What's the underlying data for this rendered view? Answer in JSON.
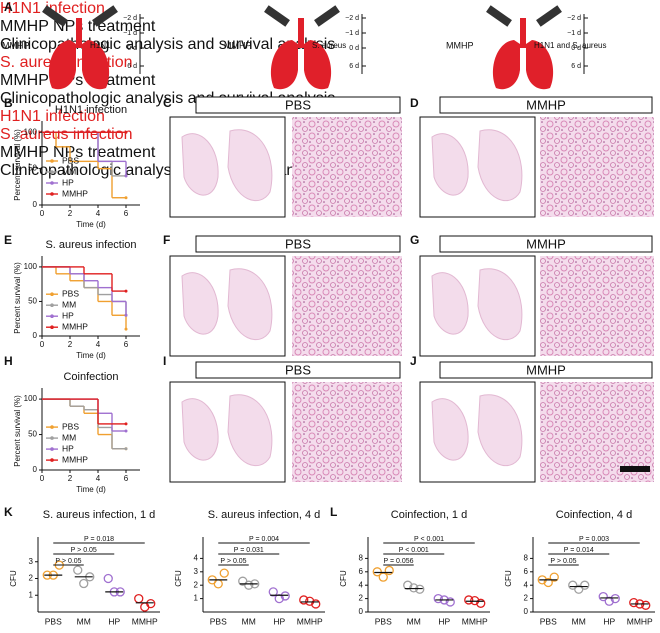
{
  "panel_labels": [
    "A",
    "B",
    "C",
    "D",
    "E",
    "F",
    "G",
    "H",
    "I",
    "J",
    "K",
    "L"
  ],
  "schematics": [
    {
      "left_label": "MMHP",
      "pathogen": "H1N1",
      "days": [
        "−2 d",
        "−1 d",
        "0 d",
        "6 d"
      ],
      "events": [
        "H1N1 infection",
        null,
        "MMHP NPs treatment",
        "Clinicopathologic analysis and survival analysis"
      ]
    },
    {
      "left_label": "MMHP",
      "pathogen": "S. aureus",
      "days": [
        "−2 d",
        "−1 d",
        "0 d",
        "6 d"
      ],
      "events": [
        null,
        "S. aureus infection",
        "MMHP NPs treatment",
        "Clinicopathologic analysis and survival analysis"
      ]
    },
    {
      "left_label": "MMHP",
      "pathogen": "H1N1 and S. aureus",
      "days": [
        "−2 d",
        "−1 d",
        "0 d",
        "6 d"
      ],
      "events": [
        "H1N1 infection",
        "S. aureus infection",
        "MMHP NPs treatment",
        "Clinicopathologic analysis and survival analysis"
      ]
    }
  ],
  "histology": [
    {
      "label": "PBS"
    },
    {
      "label": "MMHP"
    },
    {
      "label": "PBS"
    },
    {
      "label": "MMHP"
    },
    {
      "label": "PBS"
    },
    {
      "label": "MMHP"
    }
  ],
  "chart_data": [
    {
      "type": "step",
      "title": "H1N1 infection",
      "x_label": "Time (d)",
      "y_label": "Percent survival (%)",
      "x": [
        0,
        1,
        2,
        3,
        4,
        5,
        6
      ],
      "xlim": [
        0,
        7
      ],
      "xticks": [
        0,
        2,
        4,
        6
      ],
      "ylim": [
        0,
        110
      ],
      "yticks": [
        0,
        50,
        100
      ],
      "series": [
        {
          "name": "PBS",
          "color": "#f0a030",
          "values": [
            100,
            80,
            60,
            60,
            50,
            10,
            10
          ]
        },
        {
          "name": "MM",
          "color": "#a0a0a0",
          "values": [
            100,
            100,
            100,
            100,
            60,
            40,
            40
          ]
        },
        {
          "name": "HP",
          "color": "#a070d0",
          "values": [
            100,
            100,
            100,
            100,
            60,
            60,
            40
          ]
        },
        {
          "name": "MMHP",
          "color": "#e02020",
          "values": [
            100,
            100,
            100,
            100,
            100,
            100,
            100
          ]
        }
      ]
    },
    {
      "type": "step",
      "title": "S. aureus infection",
      "x_label": "Time (d)",
      "y_label": "Percent survival (%)",
      "x": [
        0,
        1,
        2,
        3,
        4,
        5,
        6
      ],
      "xlim": [
        0,
        7
      ],
      "xticks": [
        0,
        2,
        4,
        6
      ],
      "ylim": [
        0,
        110
      ],
      "yticks": [
        0,
        50,
        100
      ],
      "series": [
        {
          "name": "PBS",
          "color": "#f0a030",
          "values": [
            100,
            90,
            80,
            70,
            50,
            30,
            10
          ]
        },
        {
          "name": "MM",
          "color": "#a0a0a0",
          "values": [
            100,
            100,
            90,
            70,
            60,
            50,
            30
          ]
        },
        {
          "name": "HP",
          "color": "#a070d0",
          "values": [
            100,
            100,
            90,
            80,
            70,
            50,
            30
          ]
        },
        {
          "name": "MMHP",
          "color": "#e02020",
          "values": [
            100,
            100,
            100,
            90,
            90,
            65,
            65
          ]
        }
      ]
    },
    {
      "type": "step",
      "title": "Coinfection",
      "x_label": "Time (d)",
      "y_label": "Percent survival (%)",
      "x": [
        0,
        1,
        2,
        3,
        4,
        5,
        6
      ],
      "xlim": [
        0,
        7
      ],
      "xticks": [
        0,
        2,
        4,
        6
      ],
      "ylim": [
        0,
        110
      ],
      "yticks": [
        0,
        50,
        100
      ],
      "series": [
        {
          "name": "PBS",
          "color": "#f0a030",
          "values": [
            100,
            100,
            90,
            80,
            50,
            30,
            30
          ]
        },
        {
          "name": "MM",
          "color": "#a0a0a0",
          "values": [
            100,
            100,
            90,
            85,
            60,
            30,
            30
          ]
        },
        {
          "name": "HP",
          "color": "#a070d0",
          "values": [
            100,
            100,
            100,
            100,
            80,
            55,
            55
          ]
        },
        {
          "name": "MMHP",
          "color": "#e02020",
          "values": [
            100,
            100,
            100,
            100,
            65,
            65,
            65
          ]
        }
      ]
    },
    {
      "type": "dot",
      "title": "S. aureus infection, 1 d",
      "y_label": "CFU",
      "categories": [
        "PBS",
        "MM",
        "HP",
        "MMHP"
      ],
      "colors": [
        "#f0a030",
        "#a0a0a0",
        "#a070d0",
        "#e02020"
      ],
      "points": [
        [
          2.2,
          2.8,
          2.2
        ],
        [
          2.5,
          2.1,
          1.7
        ],
        [
          2.0,
          1.2,
          1.2
        ],
        [
          0.8,
          0.5,
          0.3
        ]
      ],
      "means": [
        2.2,
        2.1,
        1.2,
        0.55
      ],
      "ylim": [
        0,
        4
      ],
      "yticks": [
        1,
        2,
        3
      ],
      "p_labels": [
        "P > 0.05",
        "P > 0.05",
        "P = 0.018"
      ]
    },
    {
      "type": "dot",
      "title": "S. aureus infection, 4 d",
      "y_label": "CFU",
      "categories": [
        "PBS",
        "MM",
        "HP",
        "MMHP"
      ],
      "colors": [
        "#f0a030",
        "#a0a0a0",
        "#a070d0",
        "#e02020"
      ],
      "points": [
        [
          2.4,
          2.9,
          2.1
        ],
        [
          2.3,
          2.1,
          2.0
        ],
        [
          1.5,
          1.2,
          1.0
        ],
        [
          0.9,
          0.6,
          0.8
        ]
      ],
      "means": [
        2.4,
        2.1,
        1.25,
        0.75
      ],
      "ylim": [
        0,
        5
      ],
      "yticks": [
        1,
        2,
        3,
        4
      ],
      "p_labels": [
        "P > 0.05",
        "P = 0.031",
        "P = 0.004"
      ]
    },
    {
      "type": "dot",
      "title": "Coinfection, 1 d",
      "y_label": "CFU",
      "categories": [
        "PBS",
        "MM",
        "HP",
        "MMHP"
      ],
      "colors": [
        "#f0a030",
        "#a0a0a0",
        "#a070d0",
        "#e02020"
      ],
      "points": [
        [
          6.0,
          6.2,
          5.2
        ],
        [
          4.0,
          3.4,
          3.6
        ],
        [
          2.0,
          1.5,
          1.8
        ],
        [
          1.8,
          1.3,
          1.7
        ]
      ],
      "means": [
        5.9,
        3.5,
        1.8,
        1.6
      ],
      "ylim": [
        0,
        10
      ],
      "yticks": [
        0,
        2,
        4,
        6,
        8
      ],
      "p_labels": [
        "P = 0.056",
        "P < 0.001",
        "P < 0.001"
      ]
    },
    {
      "type": "dot",
      "title": "Coinfection, 4 d",
      "y_label": "CFU",
      "categories": [
        "PBS",
        "MM",
        "HP",
        "MMHP"
      ],
      "colors": [
        "#f0a030",
        "#a0a0a0",
        "#a070d0",
        "#e02020"
      ],
      "points": [
        [
          4.8,
          5.2,
          4.4
        ],
        [
          4.0,
          4.0,
          3.4
        ],
        [
          2.3,
          2.0,
          1.6
        ],
        [
          1.4,
          1.0,
          1.2
        ]
      ],
      "means": [
        4.8,
        3.8,
        2.1,
        1.2
      ],
      "ylim": [
        0,
        10
      ],
      "yticks": [
        0,
        2,
        4,
        6,
        8
      ],
      "p_labels": [
        "P > 0.05",
        "P = 0.014",
        "P = 0.003"
      ]
    }
  ]
}
